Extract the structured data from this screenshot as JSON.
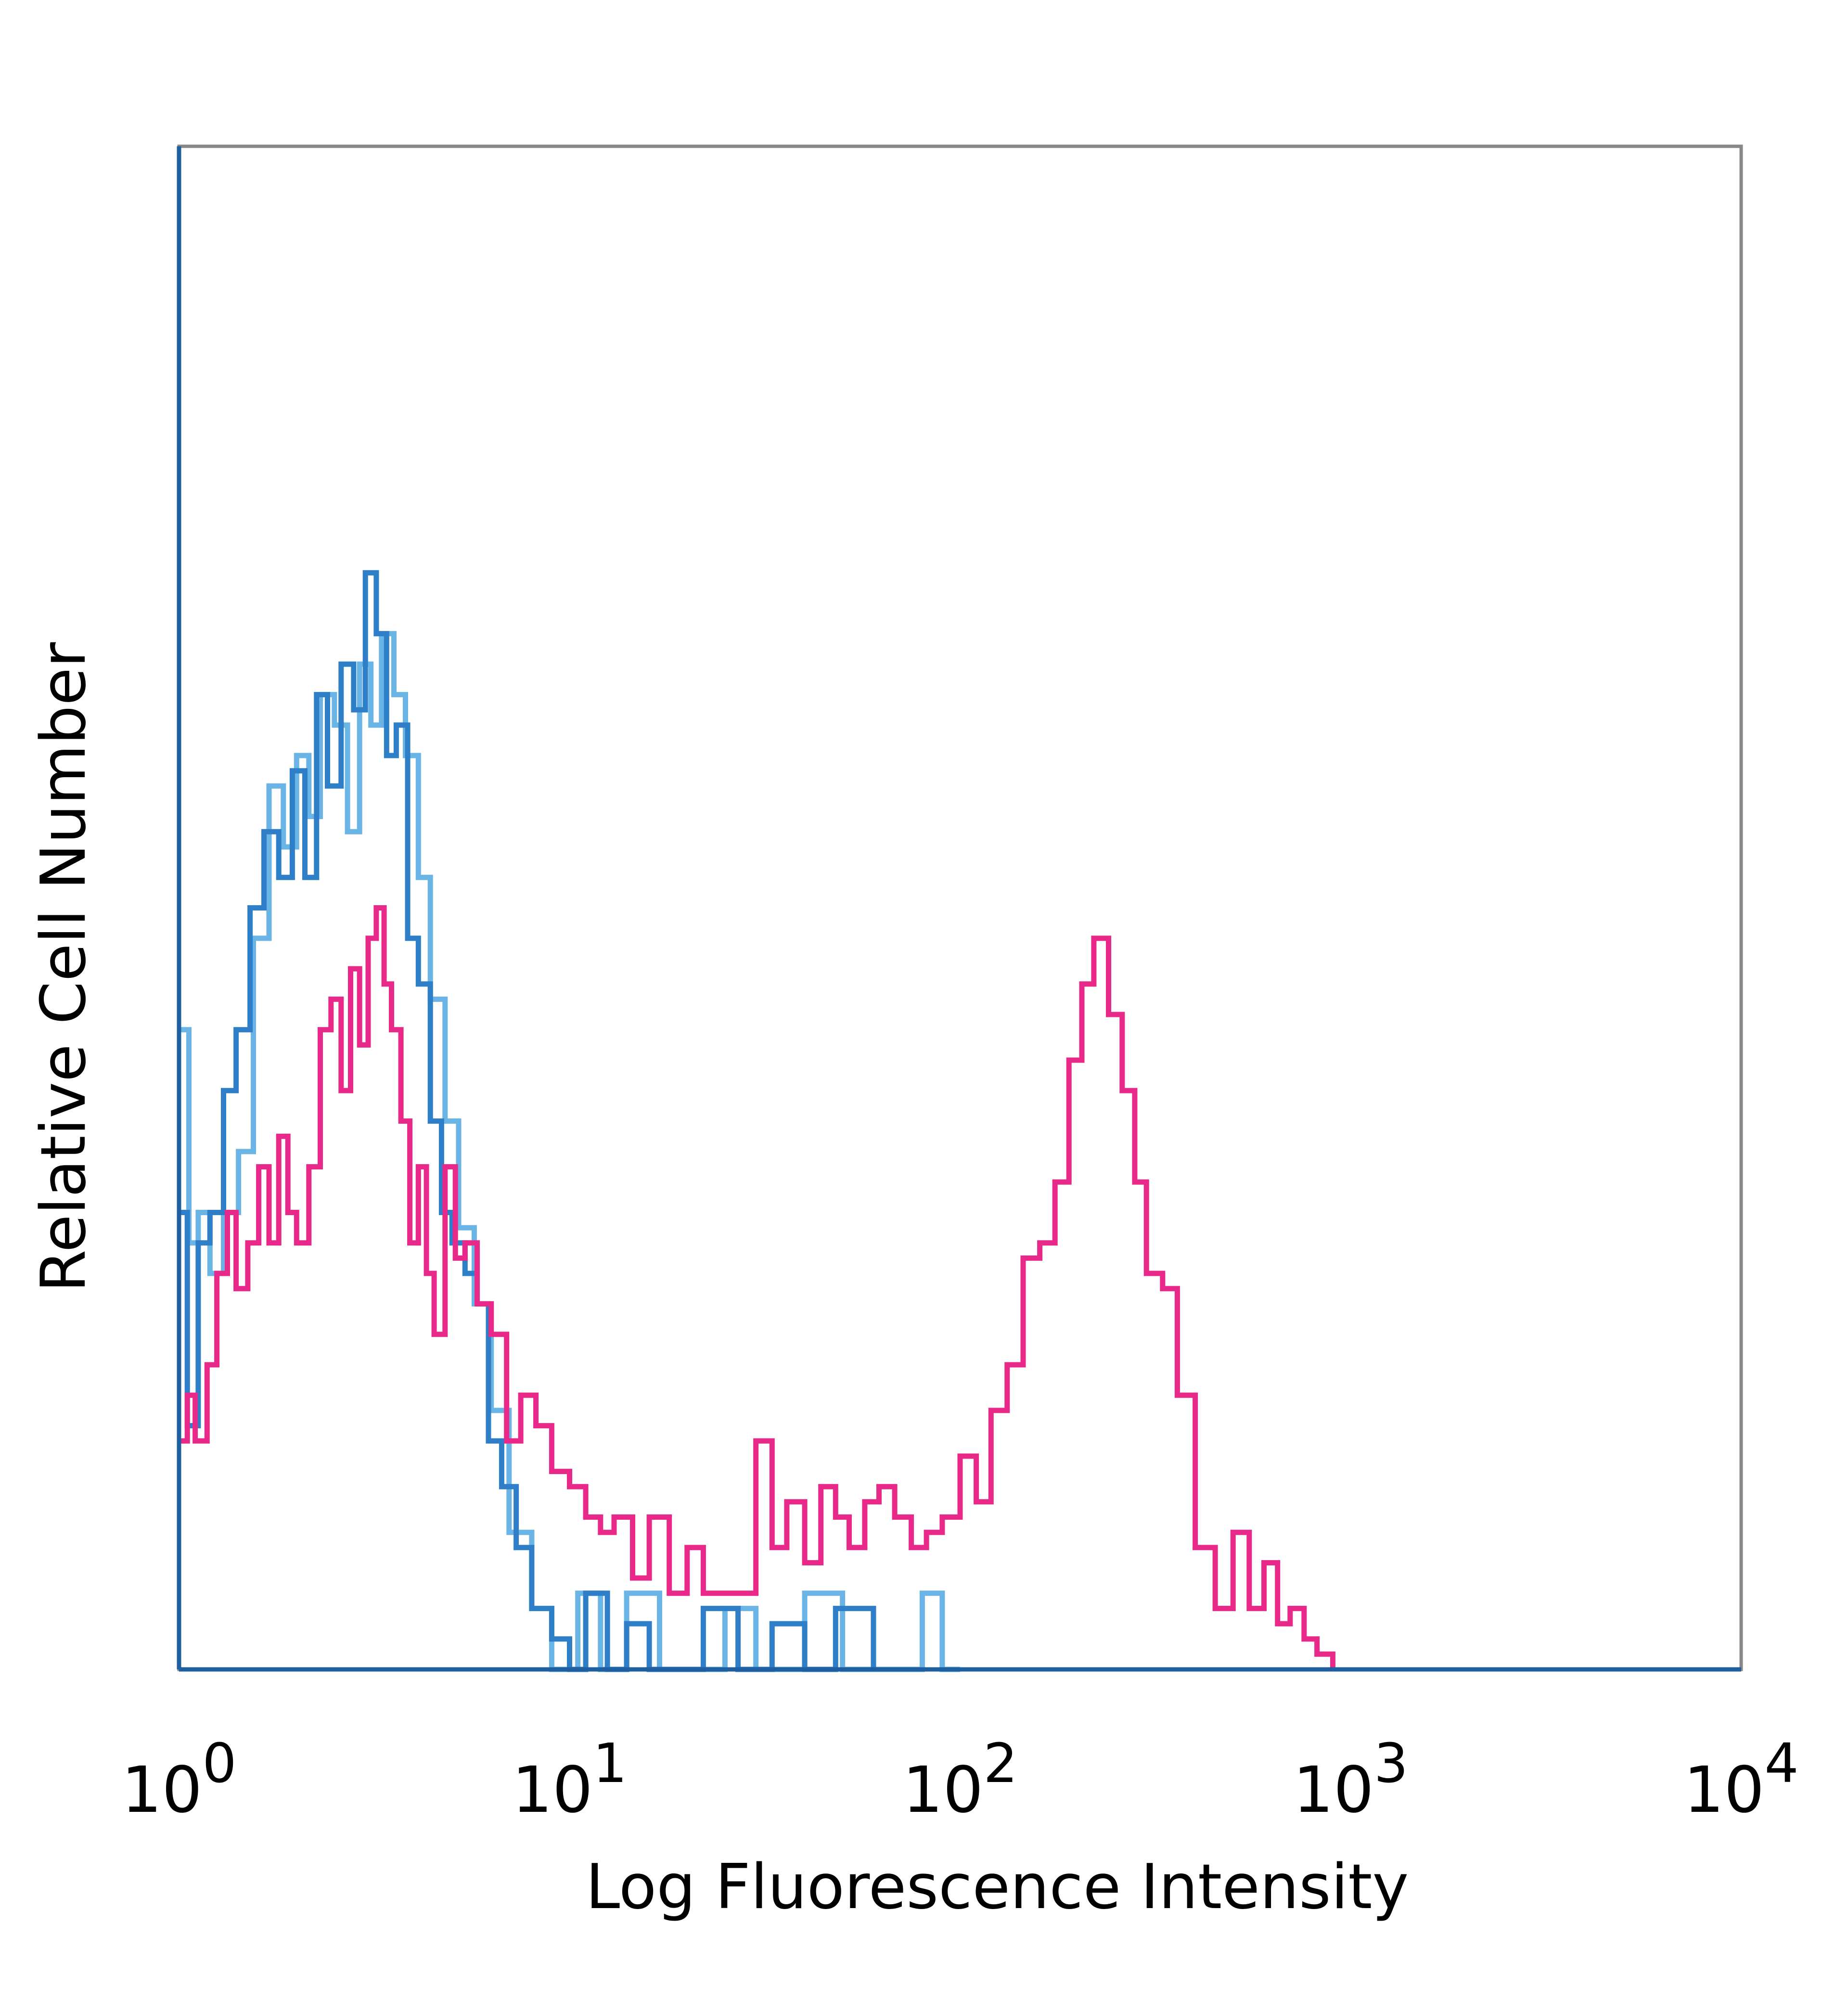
{
  "chart_data": {
    "type": "line",
    "chart_style": "flow cytometry histogram overlay (step lines)",
    "xlabel": "Log Fluorescence Intensity",
    "ylabel": "Relative Cell Number",
    "x_scale": "log",
    "xlim": [
      1,
      10000
    ],
    "ylim": [
      0,
      100
    ],
    "y_ticks_shown": false,
    "grid": false,
    "legend": "none",
    "x_ticks": [
      {
        "value": 1,
        "base": "10",
        "exp": "0"
      },
      {
        "value": 10,
        "base": "10",
        "exp": "1"
      },
      {
        "value": 100,
        "base": "10",
        "exp": "2"
      },
      {
        "value": 1000,
        "base": "10",
        "exp": "3"
      },
      {
        "value": 10000,
        "base": "10",
        "exp": "4"
      }
    ],
    "series": [
      {
        "color": "#6AB4E6",
        "x": [
          1.0,
          1.06,
          1.12,
          1.2,
          1.3,
          1.42,
          1.55,
          1.7,
          1.85,
          2.0,
          2.15,
          2.3,
          2.5,
          2.7,
          2.9,
          3.1,
          3.3,
          3.55,
          3.8,
          4.1,
          4.4,
          4.8,
          5.2,
          5.7,
          6.3,
          7.0,
          8.0,
          9.0,
          10.5,
          12.0,
          14.0,
          17.0,
          20.0,
          25.0,
          30.0,
          40.0,
          50.0,
          60.0,
          75.0,
          80.0,
          90.0,
          100.0
        ],
        "y": [
          42,
          28,
          30,
          26,
          30,
          34,
          48,
          58,
          54,
          60,
          56,
          64,
          62,
          55,
          66,
          62,
          68,
          64,
          60,
          52,
          44,
          36,
          29,
          24,
          17,
          9,
          4,
          0,
          5,
          0,
          5,
          0,
          0,
          4,
          0,
          5,
          0,
          0,
          0,
          5,
          0,
          0
        ]
      },
      {
        "color": "#2E7FC8",
        "x": [
          1.0,
          1.05,
          1.12,
          1.2,
          1.3,
          1.4,
          1.52,
          1.65,
          1.8,
          1.95,
          2.1,
          2.25,
          2.4,
          2.6,
          2.8,
          3.0,
          3.2,
          3.4,
          3.6,
          3.85,
          4.1,
          4.4,
          4.7,
          5.0,
          5.4,
          5.8,
          6.2,
          6.7,
          7.3,
          8.0,
          9.0,
          10.0,
          11.0,
          12.5,
          14.0,
          16.0,
          19.0,
          22.0,
          27.0,
          33.0,
          40.0,
          48.0,
          60.0
        ],
        "y": [
          30,
          16,
          28,
          30,
          38,
          42,
          50,
          55,
          52,
          59,
          52,
          64,
          58,
          66,
          63,
          72,
          68,
          60,
          62,
          48,
          45,
          36,
          30,
          28,
          26,
          24,
          15,
          12,
          8,
          4,
          2,
          0,
          5,
          0,
          3,
          0,
          0,
          4,
          0,
          3,
          0,
          4,
          0
        ]
      },
      {
        "color": "#E8298A",
        "x": [
          1.0,
          1.05,
          1.1,
          1.18,
          1.25,
          1.33,
          1.4,
          1.5,
          1.6,
          1.7,
          1.8,
          1.9,
          2.0,
          2.15,
          2.3,
          2.45,
          2.6,
          2.75,
          2.9,
          3.05,
          3.2,
          3.35,
          3.5,
          3.7,
          3.9,
          4.1,
          4.3,
          4.5,
          4.8,
          5.1,
          5.4,
          5.8,
          6.3,
          6.9,
          7.5,
          8.2,
          9.0,
          10.0,
          11.0,
          12.0,
          13.0,
          14.5,
          16.0,
          18.0,
          20.0,
          22.0,
          25.0,
          28.0,
          30.0,
          33.0,
          36.0,
          40.0,
          44.0,
          48.0,
          52.0,
          57.0,
          62.0,
          68.0,
          75.0,
          82.0,
          90.0,
          100.0,
          110.0,
          120.0,
          132.0,
          145.0,
          160.0,
          175.0,
          190.0,
          205.0,
          220.0,
          240.0,
          260.0,
          280.0,
          300.0,
          330.0,
          360.0,
          400.0,
          450.0,
          500.0,
          550.0,
          600.0,
          650.0,
          700.0,
          760.0,
          820.0,
          900.0
        ],
        "y": [
          15,
          18,
          15,
          20,
          26,
          30,
          25,
          28,
          33,
          28,
          35,
          30,
          28,
          33,
          42,
          44,
          38,
          46,
          41,
          48,
          50,
          45,
          42,
          36,
          28,
          33,
          26,
          22,
          33,
          27,
          28,
          24,
          22,
          15,
          18,
          16,
          13,
          12,
          10,
          9,
          10,
          6,
          10,
          5,
          8,
          5,
          5,
          5,
          15,
          8,
          11,
          7,
          12,
          10,
          8,
          11,
          12,
          10,
          8,
          9,
          10,
          14,
          11,
          17,
          20,
          27,
          28,
          32,
          40,
          45,
          48,
          43,
          38,
          32,
          26,
          25,
          18,
          8,
          4,
          9,
          4,
          7,
          3,
          4,
          2,
          1,
          0
        ]
      }
    ]
  }
}
